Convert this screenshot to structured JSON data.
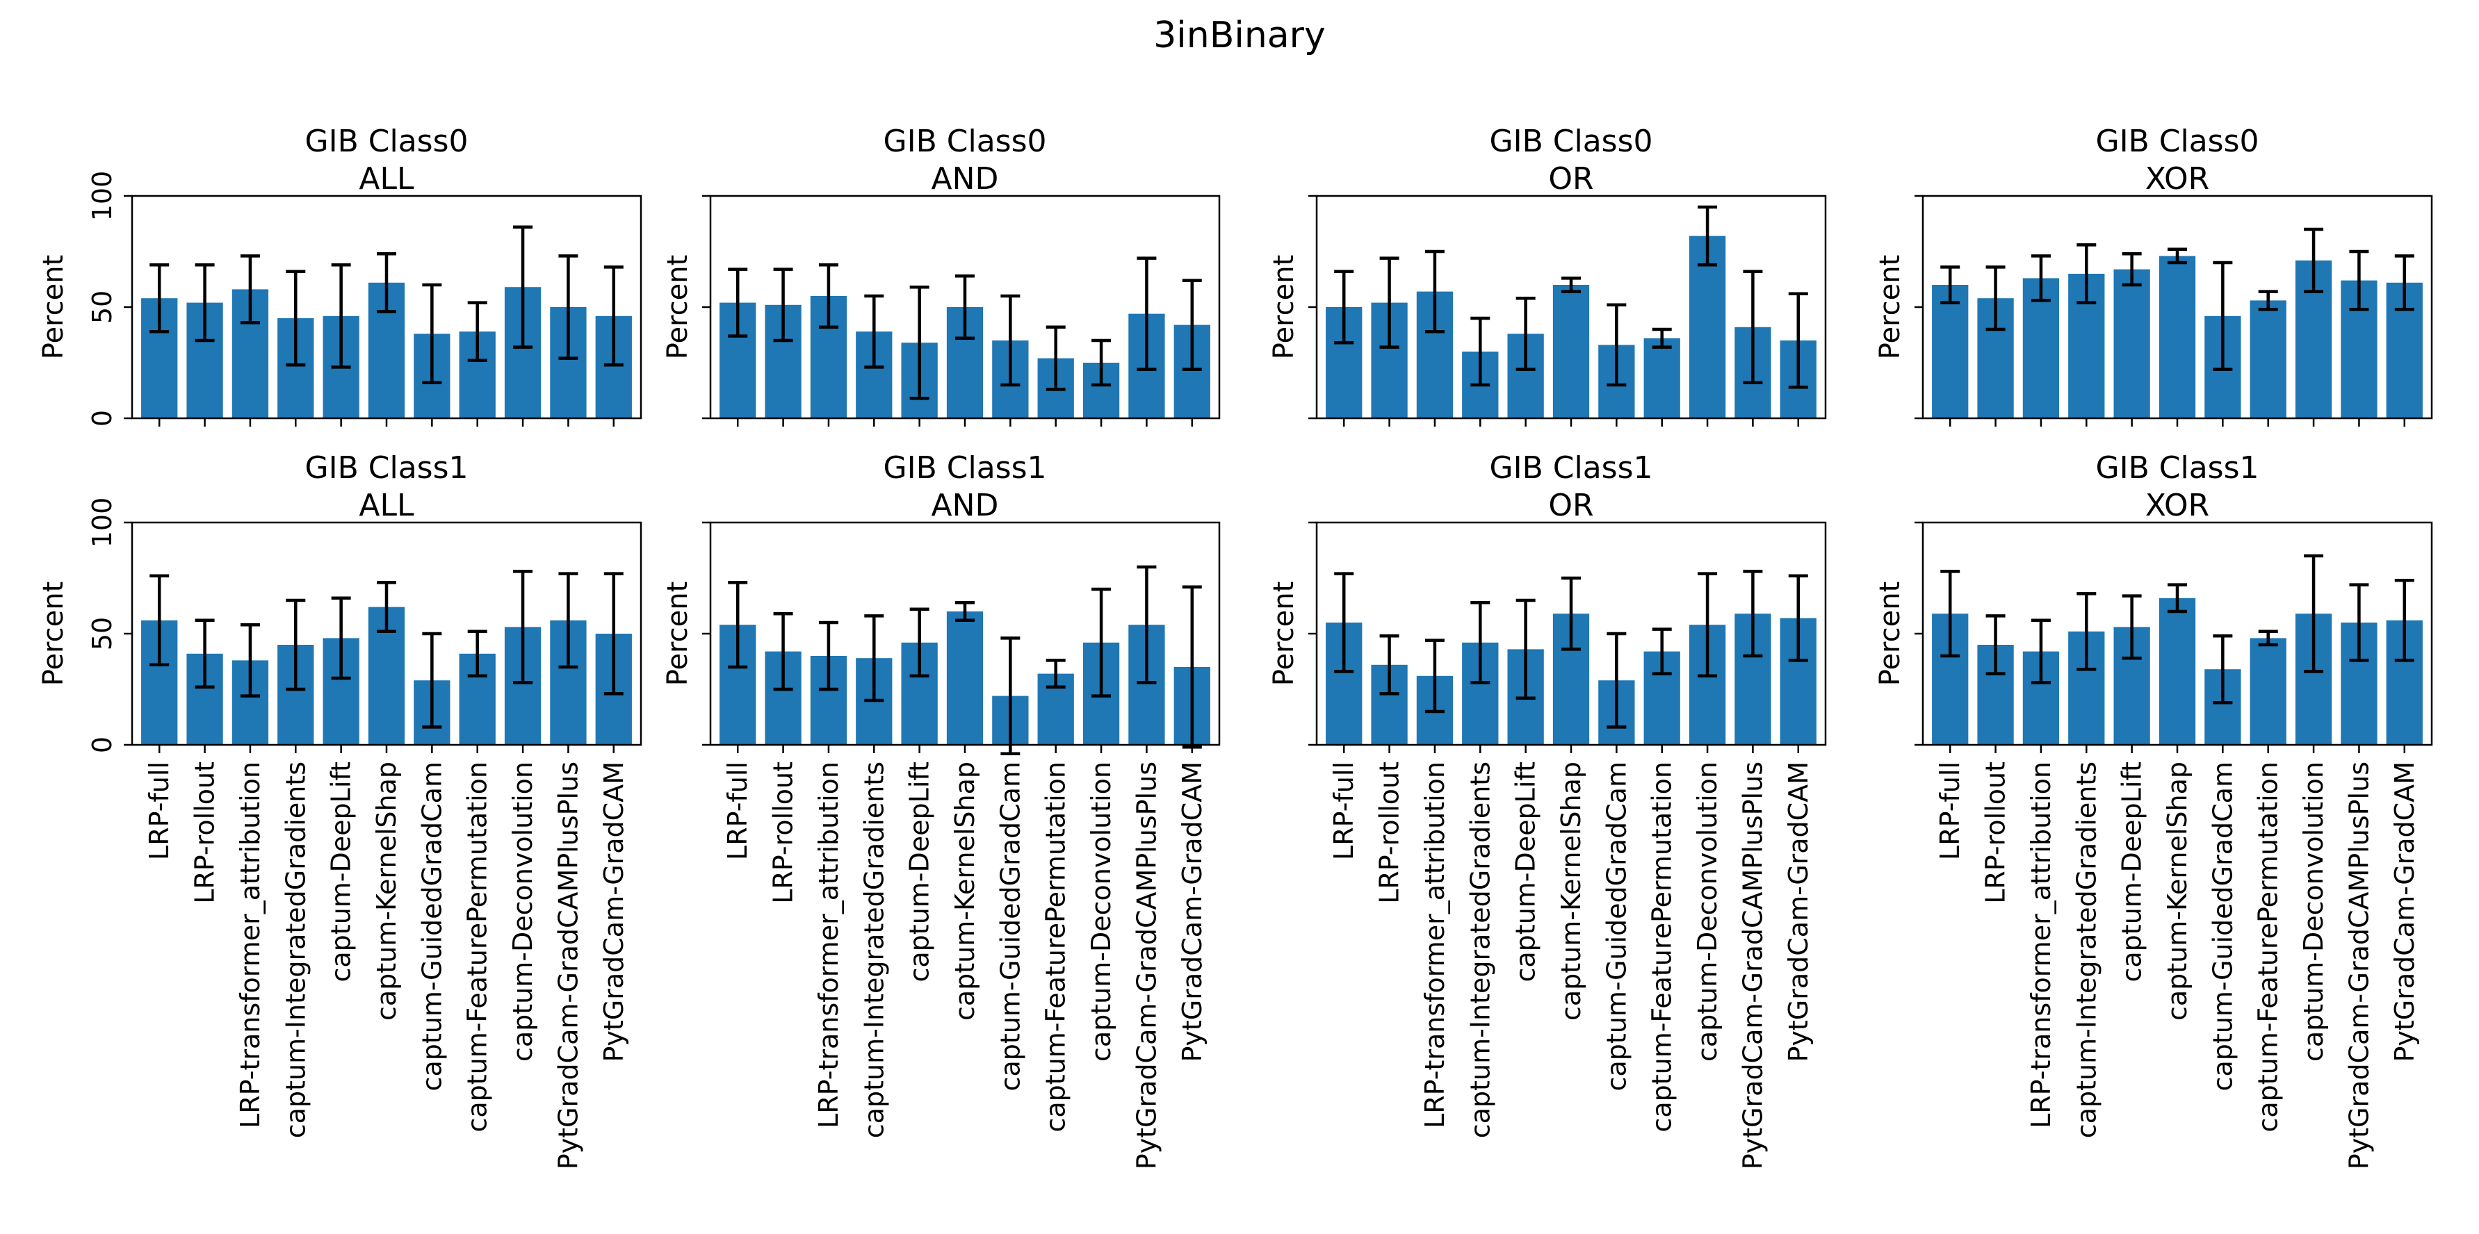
{
  "title": "3inBinary",
  "bar_color": "#1f77b4",
  "error_color": "#000000",
  "chart_data": [
    {
      "type": "bar",
      "row": 0,
      "col": 0,
      "title": "GIB Class0\nALL",
      "ylabel": "Percent",
      "ylim": [
        0,
        100
      ],
      "yticks": [
        0,
        50,
        100
      ],
      "categories": [
        "LRP-full",
        "LRP-rollout",
        "LRP-transformer_attribution",
        "captum-IntegratedGradients",
        "captum-DeepLift",
        "captum-KernelShap",
        "captum-GuidedGradCam",
        "captum-FeaturePermutation",
        "captum-Deconvolution",
        "PytGradCam-GradCAMPlusPlus",
        "PytGradCam-GradCAM"
      ],
      "values": [
        54,
        52,
        58,
        45,
        46,
        61,
        38,
        39,
        59,
        50,
        46
      ],
      "errors": [
        15,
        17,
        15,
        21,
        23,
        13,
        22,
        13,
        27,
        23,
        22
      ]
    },
    {
      "type": "bar",
      "row": 0,
      "col": 1,
      "title": "GIB Class0\nAND",
      "ylabel": "Percent",
      "ylim": [
        0,
        100
      ],
      "yticks": [],
      "categories": [
        "LRP-full",
        "LRP-rollout",
        "LRP-transformer_attribution",
        "captum-IntegratedGradients",
        "captum-DeepLift",
        "captum-KernelShap",
        "captum-GuidedGradCam",
        "captum-FeaturePermutation",
        "captum-Deconvolution",
        "PytGradCam-GradCAMPlusPlus",
        "PytGradCam-GradCAM"
      ],
      "values": [
        52,
        51,
        55,
        39,
        34,
        50,
        35,
        27,
        25,
        47,
        42
      ],
      "errors": [
        15,
        16,
        14,
        16,
        25,
        14,
        20,
        14,
        10,
        25,
        20
      ]
    },
    {
      "type": "bar",
      "row": 0,
      "col": 2,
      "title": "GIB Class0\nOR",
      "ylabel": "Percent",
      "ylim": [
        0,
        100
      ],
      "yticks": [],
      "categories": [
        "LRP-full",
        "LRP-rollout",
        "LRP-transformer_attribution",
        "captum-IntegratedGradients",
        "captum-DeepLift",
        "captum-KernelShap",
        "captum-GuidedGradCam",
        "captum-FeaturePermutation",
        "captum-Deconvolution",
        "PytGradCam-GradCAMPlusPlus",
        "PytGradCam-GradCAM"
      ],
      "values": [
        50,
        52,
        57,
        30,
        38,
        60,
        33,
        36,
        82,
        41,
        35
      ],
      "errors": [
        16,
        20,
        18,
        15,
        16,
        3,
        18,
        4,
        13,
        25,
        21
      ]
    },
    {
      "type": "bar",
      "row": 0,
      "col": 3,
      "title": "GIB Class0\nXOR",
      "ylabel": "Percent",
      "ylim": [
        0,
        100
      ],
      "yticks": [],
      "categories": [
        "LRP-full",
        "LRP-rollout",
        "LRP-transformer_attribution",
        "captum-IntegratedGradients",
        "captum-DeepLift",
        "captum-KernelShap",
        "captum-GuidedGradCam",
        "captum-FeaturePermutation",
        "captum-Deconvolution",
        "PytGradCam-GradCAMPlusPlus",
        "PytGradCam-GradCAM"
      ],
      "values": [
        60,
        54,
        63,
        65,
        67,
        73,
        46,
        53,
        71,
        62,
        61
      ],
      "errors": [
        8,
        14,
        10,
        13,
        7,
        3,
        24,
        4,
        14,
        13,
        12
      ]
    },
    {
      "type": "bar",
      "row": 1,
      "col": 0,
      "title": "GIB Class1\nALL",
      "ylabel": "Percent",
      "ylim": [
        0,
        100
      ],
      "yticks": [
        0,
        50,
        100
      ],
      "categories": [
        "LRP-full",
        "LRP-rollout",
        "LRP-transformer_attribution",
        "captum-IntegratedGradients",
        "captum-DeepLift",
        "captum-KernelShap",
        "captum-GuidedGradCam",
        "captum-FeaturePermutation",
        "captum-Deconvolution",
        "PytGradCam-GradCAMPlusPlus",
        "PytGradCam-GradCAM"
      ],
      "values": [
        56,
        41,
        38,
        45,
        48,
        62,
        29,
        41,
        53,
        56,
        50
      ],
      "errors": [
        20,
        15,
        16,
        20,
        18,
        11,
        21,
        10,
        25,
        21,
        27
      ]
    },
    {
      "type": "bar",
      "row": 1,
      "col": 1,
      "title": "GIB Class1\nAND",
      "ylabel": "Percent",
      "ylim": [
        0,
        100
      ],
      "yticks": [],
      "categories": [
        "LRP-full",
        "LRP-rollout",
        "LRP-transformer_attribution",
        "captum-IntegratedGradients",
        "captum-DeepLift",
        "captum-KernelShap",
        "captum-GuidedGradCam",
        "captum-FeaturePermutation",
        "captum-Deconvolution",
        "PytGradCam-GradCAMPlusPlus",
        "PytGradCam-GradCAM"
      ],
      "values": [
        54,
        42,
        40,
        39,
        46,
        60,
        22,
        32,
        46,
        54,
        35
      ],
      "errors": [
        19,
        17,
        15,
        19,
        15,
        4,
        26,
        6,
        24,
        26,
        36
      ]
    },
    {
      "type": "bar",
      "row": 1,
      "col": 2,
      "title": "GIB Class1\nOR",
      "ylabel": "Percent",
      "ylim": [
        0,
        100
      ],
      "yticks": [],
      "categories": [
        "LRP-full",
        "LRP-rollout",
        "LRP-transformer_attribution",
        "captum-IntegratedGradients",
        "captum-DeepLift",
        "captum-KernelShap",
        "captum-GuidedGradCam",
        "captum-FeaturePermutation",
        "captum-Deconvolution",
        "PytGradCam-GradCAMPlusPlus",
        "PytGradCam-GradCAM"
      ],
      "values": [
        55,
        36,
        31,
        46,
        43,
        59,
        29,
        42,
        54,
        59,
        57
      ],
      "errors": [
        22,
        13,
        16,
        18,
        22,
        16,
        21,
        10,
        23,
        19,
        19
      ]
    },
    {
      "type": "bar",
      "row": 1,
      "col": 3,
      "title": "GIB Class1\nXOR",
      "ylabel": "Percent",
      "ylim": [
        0,
        100
      ],
      "yticks": [],
      "categories": [
        "LRP-full",
        "LRP-rollout",
        "LRP-transformer_attribution",
        "captum-IntegratedGradients",
        "captum-DeepLift",
        "captum-KernelShap",
        "captum-GuidedGradCam",
        "captum-FeaturePermutation",
        "captum-Deconvolution",
        "PytGradCam-GradCAMPlusPlus",
        "PytGradCam-GradCAM"
      ],
      "values": [
        59,
        45,
        42,
        51,
        53,
        66,
        34,
        48,
        59,
        55,
        56
      ],
      "errors": [
        19,
        13,
        14,
        17,
        14,
        6,
        15,
        3,
        26,
        17,
        18
      ]
    }
  ]
}
